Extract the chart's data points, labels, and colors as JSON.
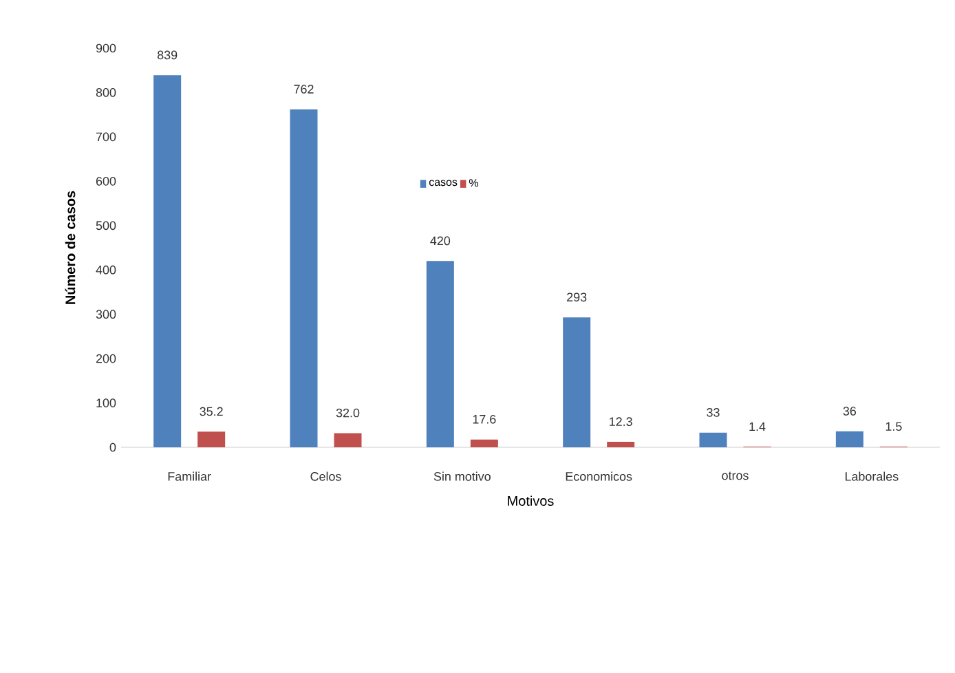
{
  "chart_data": {
    "type": "bar",
    "xlabel": "Motivos",
    "ylabel": "Número de casos",
    "categories": [
      "Familiar",
      "Celos",
      "Sin motivo",
      "Economicos",
      "otros",
      "Laborales"
    ],
    "series": [
      {
        "name": "casos",
        "color": "#4f81bd",
        "values": [
          839,
          762,
          420,
          293,
          33,
          36
        ],
        "value_labels": [
          "839",
          "762",
          "420",
          "293",
          "33",
          "36"
        ]
      },
      {
        "name": "%",
        "color": "#c0504d",
        "values": [
          35.2,
          32.0,
          17.6,
          12.3,
          1.4,
          1.5
        ],
        "value_labels": [
          "35.2",
          "32.0",
          "17.6",
          "12.3",
          "1.4",
          "1.5"
        ]
      }
    ],
    "ylim": [
      0,
      900
    ],
    "yticks": [
      0,
      100,
      200,
      300,
      400,
      500,
      600,
      700,
      800,
      900
    ],
    "grid": false,
    "legend": "top"
  }
}
